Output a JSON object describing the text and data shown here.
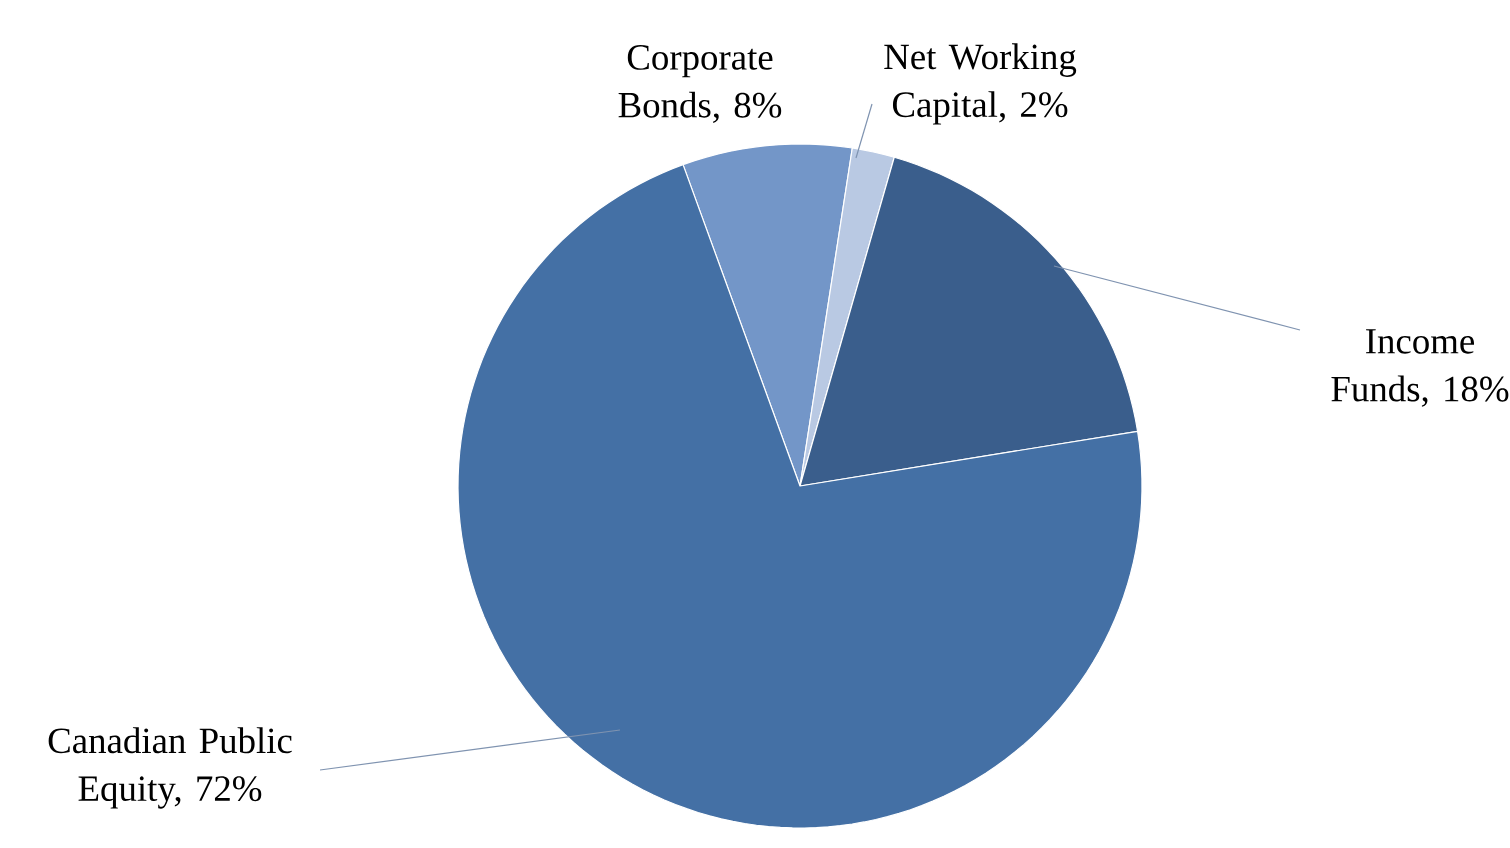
{
  "chart_data": {
    "type": "pie",
    "categories": [
      "Corporate Bonds, 8%",
      "Net Working Capital, 2%",
      "Income Funds, 18%",
      "Canadian Public Equity, 72%"
    ],
    "values": [
      8,
      2,
      18,
      72
    ],
    "colors": [
      "#7396c8",
      "#b9c9e3",
      "#3a5e8c",
      "#4470a5"
    ]
  }
}
